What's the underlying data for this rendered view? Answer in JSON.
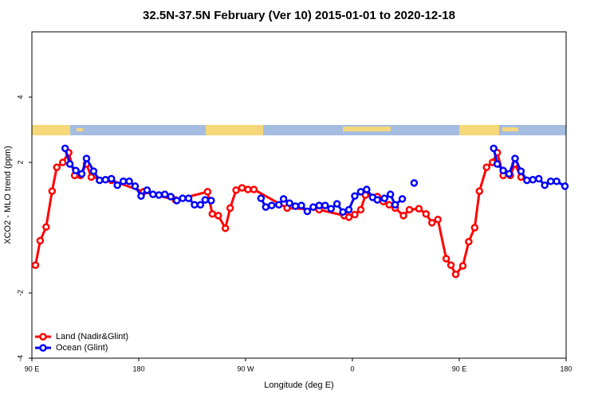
{
  "chart_data": {
    "type": "line",
    "title": "32.5N-37.5N February (Ver 10)   2015-01-01 to 2020-12-18",
    "x_label": "Longitude (deg E)",
    "y_label": "XCO2 - MLO trend (ppm)",
    "xlim": [
      90,
      540
    ],
    "xticks": [
      {
        "value": 90,
        "label": "90 E"
      },
      180,
      {
        "value": 270,
        "label": "90 W"
      },
      {
        "value": 360,
        "label": "0"
      },
      {
        "value": 450,
        "label": "90 E"
      },
      {
        "value": 540,
        "label": "180"
      }
    ],
    "ylim": [
      -4,
      6
    ],
    "yticks": [
      -4,
      -2,
      2,
      4
    ],
    "legend": "bottom-left",
    "series": [
      {
        "name": "Land (Nadir&Glint)",
        "color": "#ff0000",
        "x": [
          93,
          97,
          102,
          107,
          111,
          116,
          121,
          126,
          131,
          136,
          140,
          157,
          184,
          211,
          238,
          242,
          247,
          253,
          257,
          262,
          267,
          272,
          277,
          305,
          332,
          353,
          357,
          362,
          367,
          371,
          381,
          386,
          391,
          396,
          403,
          408,
          416,
          422,
          427,
          432,
          439,
          443,
          447,
          453,
          458,
          463,
          467,
          473,
          478,
          482,
          487,
          493,
          497,
          502
        ],
        "values": [
          -1.15,
          -0.4,
          0.02,
          1.12,
          1.85,
          2.0,
          2.3,
          1.6,
          1.6,
          1.95,
          1.55,
          1.45,
          1.1,
          0.85,
          1.1,
          0.42,
          0.37,
          -0.02,
          0.6,
          1.15,
          1.22,
          1.17,
          1.17,
          0.6,
          0.55,
          0.37,
          0.32,
          0.4,
          0.55,
          1.0,
          0.95,
          0.8,
          0.7,
          0.6,
          0.37,
          0.55,
          0.58,
          0.42,
          0.15,
          0.25,
          -0.95,
          -1.15,
          -1.43,
          -1.17,
          -0.43,
          0.0,
          1.12,
          1.85,
          2.0,
          2.3,
          1.6,
          1.6,
          1.95,
          1.55
        ]
      },
      {
        "name": "Ocean (Glint)",
        "color": "#0000ff",
        "x": [
          118,
          122,
          127,
          132,
          136,
          142,
          147,
          152,
          157,
          162,
          167,
          172,
          177,
          182,
          187,
          192,
          197,
          202,
          207,
          212,
          217,
          222,
          227,
          232,
          236,
          241,
          262,
          283,
          287,
          292,
          298,
          302,
          307,
          312,
          317,
          322,
          327,
          332,
          337,
          342,
          347,
          352,
          357,
          362,
          367,
          372,
          377,
          381,
          387,
          392,
          396,
          402,
          405,
          412,
          450,
          479,
          482,
          487,
          492,
          497,
          502,
          507,
          512,
          517,
          522,
          527,
          532,
          539
        ],
        "values": [
          2.43,
          1.95,
          1.75,
          1.65,
          2.12,
          1.73,
          1.45,
          1.47,
          1.5,
          1.3,
          1.42,
          1.42,
          1.27,
          0.97,
          1.15,
          1.02,
          1.0,
          1.02,
          0.95,
          0.83,
          0.9,
          0.9,
          0.7,
          0.7,
          0.85,
          0.83,
          null,
          0.9,
          0.63,
          0.68,
          0.7,
          0.88,
          0.75,
          0.66,
          0.68,
          0.5,
          0.63,
          0.68,
          0.68,
          0.58,
          0.73,
          0.48,
          0.55,
          0.97,
          1.1,
          1.17,
          0.93,
          0.85,
          0.9,
          1.02,
          0.7,
          0.88,
          null,
          1.37,
          null,
          2.43,
          1.95,
          1.75,
          1.65,
          2.12,
          1.73,
          1.45,
          1.47,
          1.5,
          1.3,
          1.42,
          1.42,
          1.27
        ]
      }
    ]
  }
}
